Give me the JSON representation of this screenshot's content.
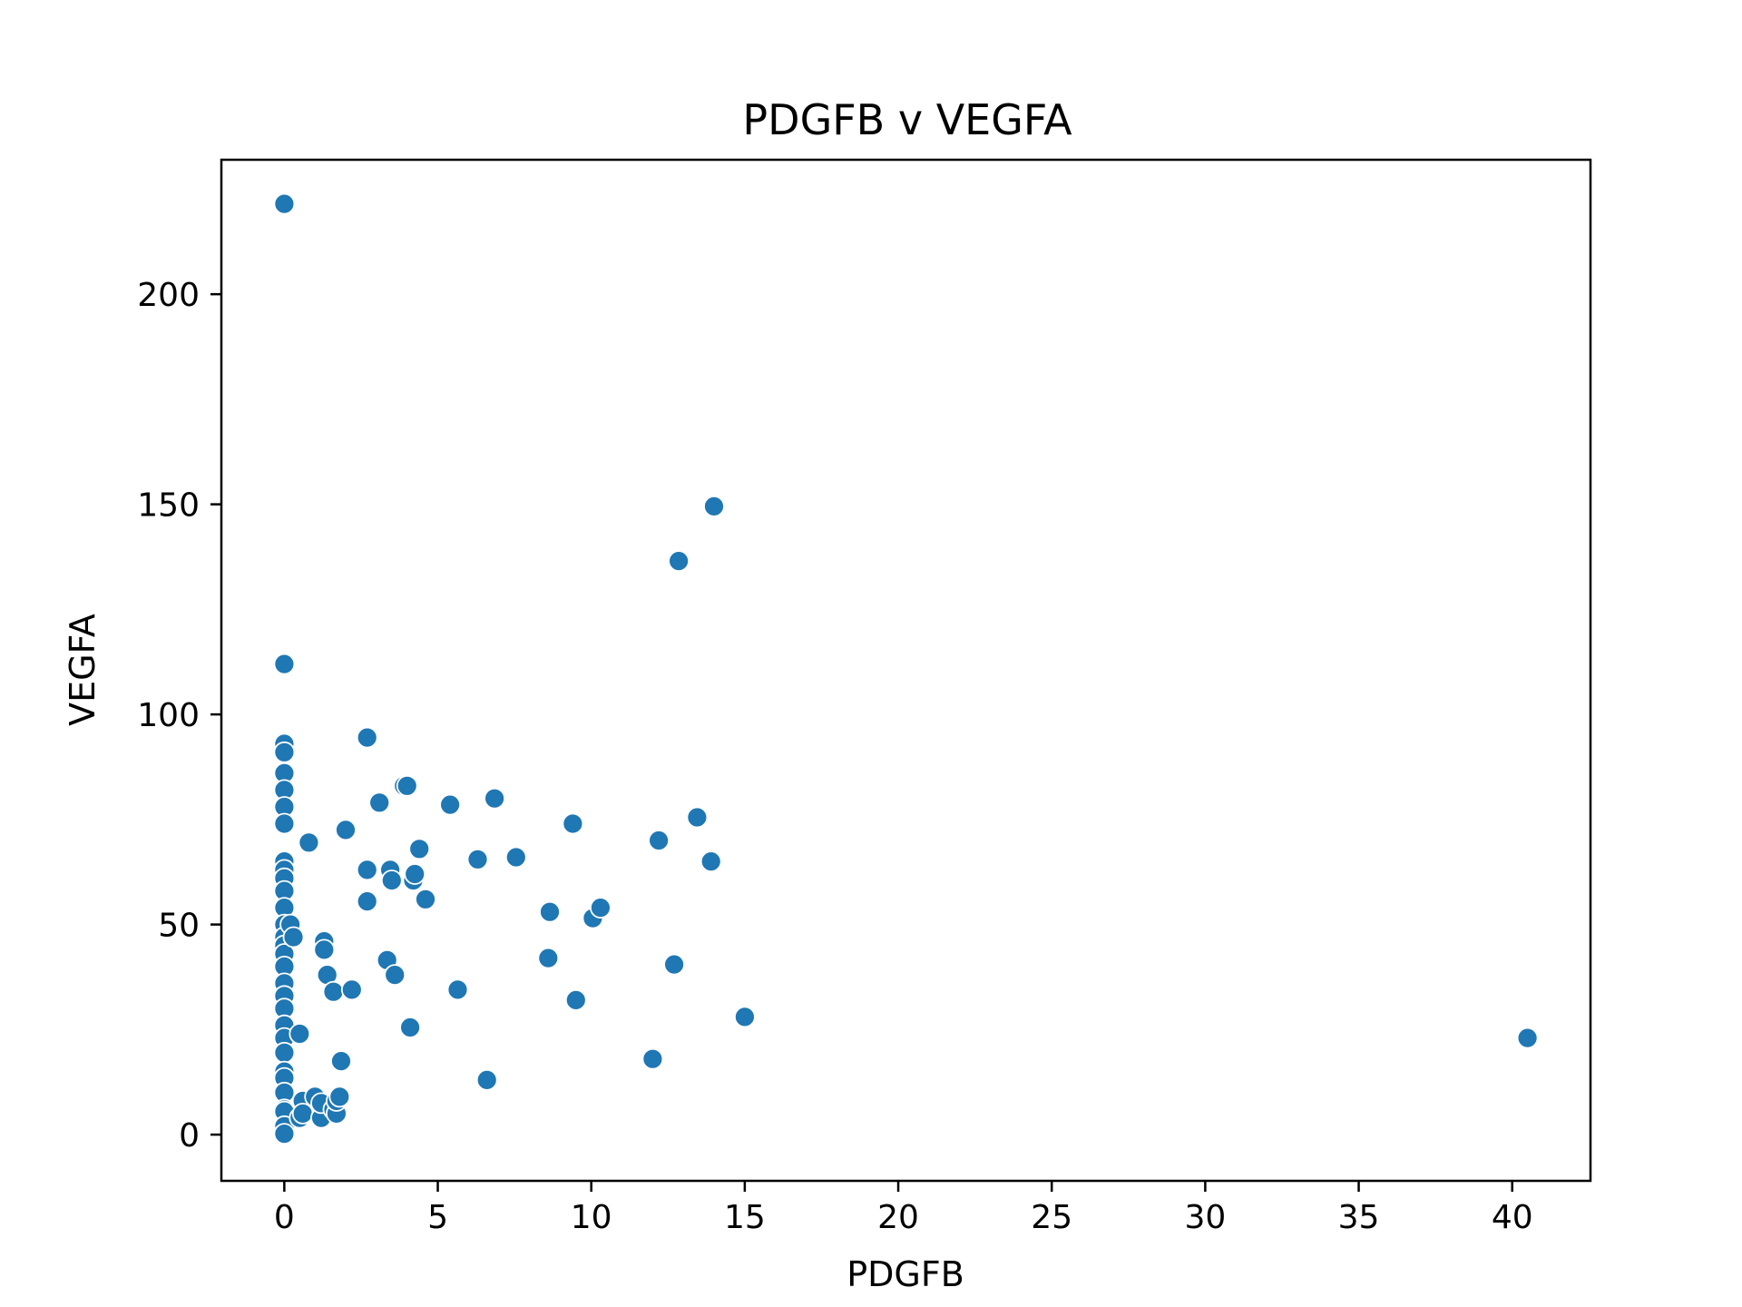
{
  "chart_data": {
    "type": "scatter",
    "title": "PDGFB v VEGFA",
    "xlabel": "PDGFB",
    "ylabel": "VEGFA",
    "xlim": [
      -2.05,
      42.55
    ],
    "ylim": [
      -11,
      232
    ],
    "xticks": [
      0,
      5,
      10,
      15,
      20,
      25,
      30,
      35,
      40
    ],
    "xtick_labels": [
      "0",
      "5",
      "10",
      "15",
      "20",
      "25",
      "30",
      "35",
      "40"
    ],
    "yticks": [
      0,
      50,
      100,
      150,
      200
    ],
    "ytick_labels": [
      "0",
      "50",
      "100",
      "150",
      "200"
    ],
    "grid": false,
    "colors": {
      "marker": "#1f77b4",
      "marker_edge": "#ffffff"
    },
    "points": [
      {
        "x": 0,
        "y": 221.5
      },
      {
        "x": 0,
        "y": 112
      },
      {
        "x": 0,
        "y": 93
      },
      {
        "x": 0,
        "y": 91
      },
      {
        "x": 0,
        "y": 86
      },
      {
        "x": 0,
        "y": 82
      },
      {
        "x": 0,
        "y": 78
      },
      {
        "x": 0,
        "y": 74
      },
      {
        "x": 0,
        "y": 65
      },
      {
        "x": 0,
        "y": 63
      },
      {
        "x": 0,
        "y": 61
      },
      {
        "x": 0,
        "y": 58
      },
      {
        "x": 0,
        "y": 54
      },
      {
        "x": 0,
        "y": 50
      },
      {
        "x": 0,
        "y": 47
      },
      {
        "x": 0,
        "y": 45
      },
      {
        "x": 0,
        "y": 43
      },
      {
        "x": 0,
        "y": 40
      },
      {
        "x": 0,
        "y": 36
      },
      {
        "x": 0,
        "y": 33
      },
      {
        "x": 0,
        "y": 30
      },
      {
        "x": 0,
        "y": 26
      },
      {
        "x": 0,
        "y": 23
      },
      {
        "x": 0,
        "y": 19.5
      },
      {
        "x": 0,
        "y": 15
      },
      {
        "x": 0,
        "y": 13.5
      },
      {
        "x": 0,
        "y": 10
      },
      {
        "x": 0,
        "y": 6
      },
      {
        "x": 0,
        "y": 5.5
      },
      {
        "x": 0,
        "y": 2
      },
      {
        "x": 0,
        "y": 0.2
      },
      {
        "x": 0.2,
        "y": 50
      },
      {
        "x": 0.3,
        "y": 47
      },
      {
        "x": 0.5,
        "y": 24
      },
      {
        "x": 0.8,
        "y": 69.5
      },
      {
        "x": 0.5,
        "y": 4
      },
      {
        "x": 0.6,
        "y": 8
      },
      {
        "x": 0.6,
        "y": 5
      },
      {
        "x": 1.0,
        "y": 9
      },
      {
        "x": 1.2,
        "y": 4
      },
      {
        "x": 1.2,
        "y": 7.5
      },
      {
        "x": 1.3,
        "y": 46
      },
      {
        "x": 1.3,
        "y": 44
      },
      {
        "x": 1.4,
        "y": 38
      },
      {
        "x": 1.6,
        "y": 34
      },
      {
        "x": 1.6,
        "y": 6
      },
      {
        "x": 1.7,
        "y": 5
      },
      {
        "x": 1.7,
        "y": 8
      },
      {
        "x": 1.8,
        "y": 9
      },
      {
        "x": 1.85,
        "y": 17.5
      },
      {
        "x": 2.0,
        "y": 72.5
      },
      {
        "x": 2.2,
        "y": 34.5
      },
      {
        "x": 2.7,
        "y": 94.5
      },
      {
        "x": 2.7,
        "y": 63
      },
      {
        "x": 2.7,
        "y": 55.5
      },
      {
        "x": 3.1,
        "y": 79
      },
      {
        "x": 3.35,
        "y": 41.5
      },
      {
        "x": 3.45,
        "y": 63
      },
      {
        "x": 3.5,
        "y": 60.5
      },
      {
        "x": 3.6,
        "y": 38
      },
      {
        "x": 3.9,
        "y": 83
      },
      {
        "x": 4.0,
        "y": 83
      },
      {
        "x": 4.1,
        "y": 25.5
      },
      {
        "x": 4.2,
        "y": 60.5
      },
      {
        "x": 4.25,
        "y": 62
      },
      {
        "x": 4.4,
        "y": 68
      },
      {
        "x": 4.6,
        "y": 56
      },
      {
        "x": 5.4,
        "y": 78.5
      },
      {
        "x": 5.65,
        "y": 34.5
      },
      {
        "x": 6.3,
        "y": 65.5
      },
      {
        "x": 6.6,
        "y": 13
      },
      {
        "x": 6.85,
        "y": 80
      },
      {
        "x": 7.55,
        "y": 66
      },
      {
        "x": 8.6,
        "y": 42
      },
      {
        "x": 8.65,
        "y": 53
      },
      {
        "x": 9.4,
        "y": 74
      },
      {
        "x": 9.5,
        "y": 32
      },
      {
        "x": 10.05,
        "y": 51.5
      },
      {
        "x": 10.3,
        "y": 54
      },
      {
        "x": 12.0,
        "y": 18
      },
      {
        "x": 12.2,
        "y": 70
      },
      {
        "x": 12.7,
        "y": 40.5
      },
      {
        "x": 12.85,
        "y": 136.5
      },
      {
        "x": 13.45,
        "y": 75.5
      },
      {
        "x": 13.9,
        "y": 65
      },
      {
        "x": 14.0,
        "y": 149.5
      },
      {
        "x": 15.0,
        "y": 28
      },
      {
        "x": 40.5,
        "y": 23
      }
    ]
  }
}
